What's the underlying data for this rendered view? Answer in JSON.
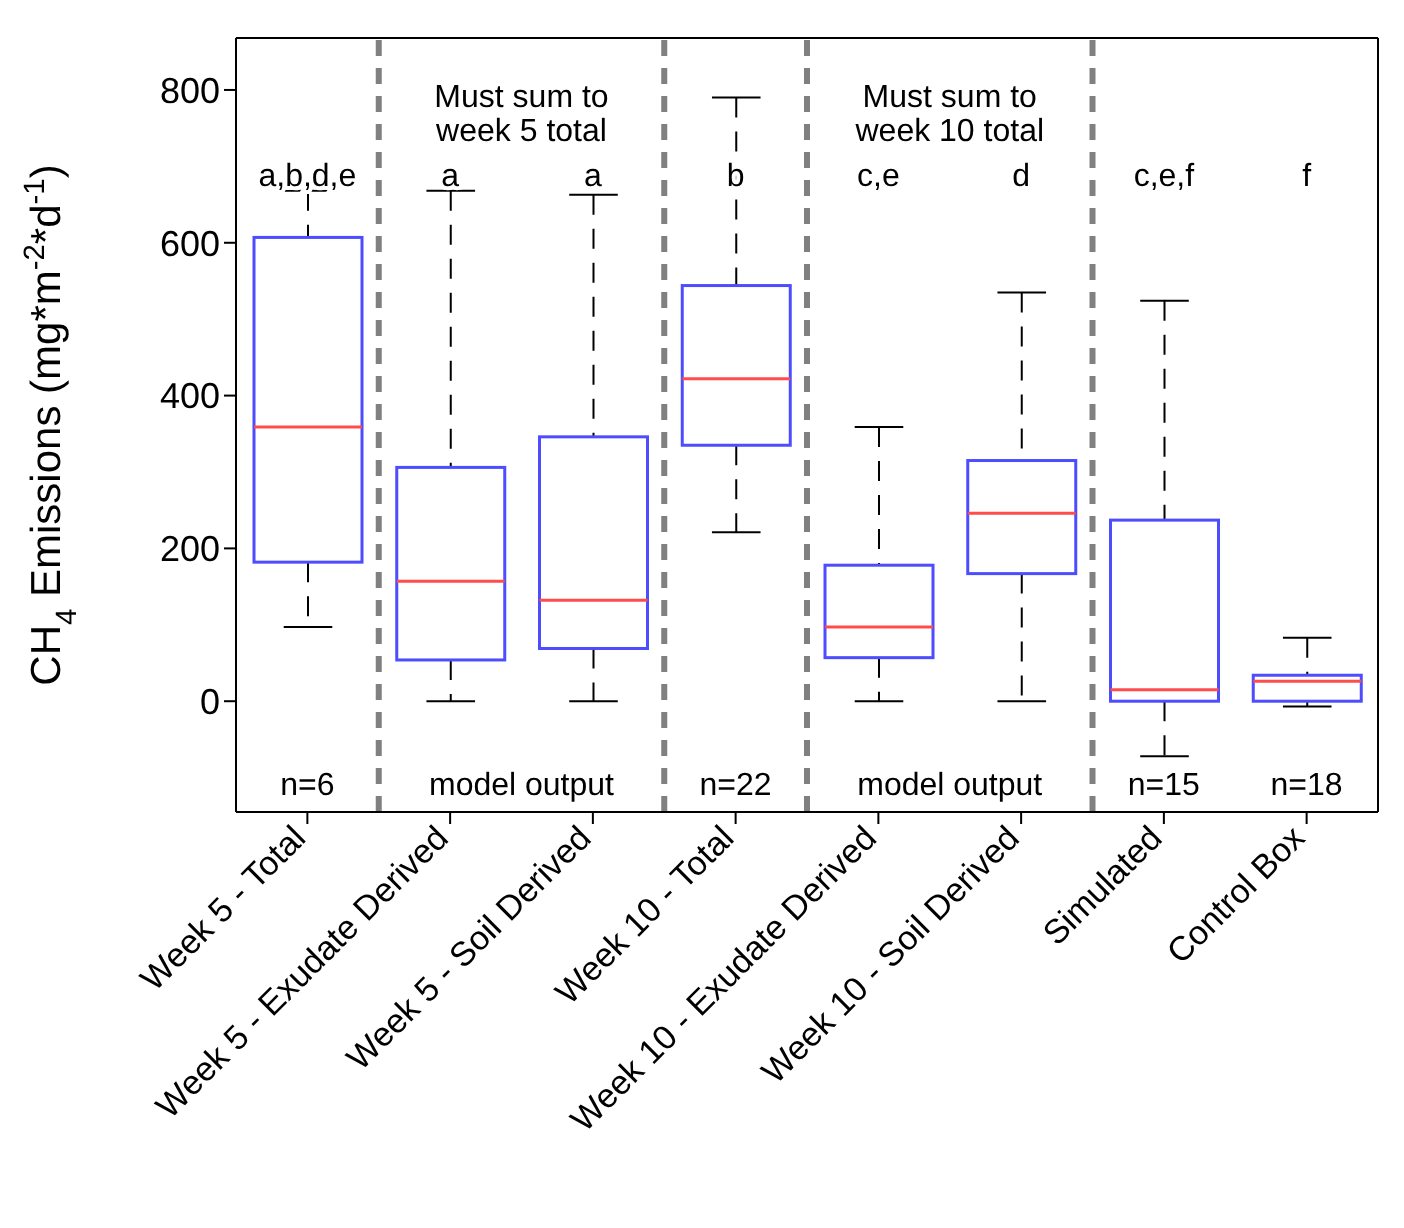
{
  "chart_data": {
    "type": "box",
    "ylabel": "CH$_{4}$ Emissions (mg*m$^{-2}$*d$^{-1}$)",
    "categories": [
      "Week 5 - Total",
      "Week 5 - Exudate Derived",
      "Week 5 - Soil Derived",
      "Week 10 - Total",
      "Week 10 - Exudate Derived",
      "Week 10 - Soil Derived",
      "Simulated",
      "Control Box"
    ],
    "boxes": [
      {
        "low": 97,
        "q1": 182,
        "median": 359,
        "q3": 607,
        "high": 668
      },
      {
        "low": 0,
        "q1": 54,
        "median": 157,
        "q3": 306,
        "high": 668
      },
      {
        "low": 0,
        "q1": 69,
        "median": 132,
        "q3": 346,
        "high": 663
      },
      {
        "low": 221,
        "q1": 335,
        "median": 422,
        "q3": 544,
        "high": 790
      },
      {
        "low": 0,
        "q1": 57,
        "median": 97,
        "q3": 178,
        "high": 359
      },
      {
        "low": 0,
        "q1": 167,
        "median": 246,
        "q3": 315,
        "high": 535
      },
      {
        "low": -72,
        "q1": 0,
        "median": 15,
        "q3": 237,
        "high": 524
      },
      {
        "low": -7,
        "q1": 0,
        "median": 26,
        "q3": 34,
        "high": 83
      }
    ],
    "color": "#4d4dff",
    "ylim": [
      -145,
      868
    ],
    "yticks": [
      0,
      200,
      400,
      600,
      800
    ],
    "annotations": [
      "a,b,d,e",
      "a",
      "a",
      "b",
      "c,e",
      "d",
      "c,e,f",
      "f",
      "Must sum to week 5 total",
      "Must sum to week 10 total",
      "n=6",
      "model output",
      "n=22",
      "model output",
      "n=15",
      "n=18"
    ]
  }
}
